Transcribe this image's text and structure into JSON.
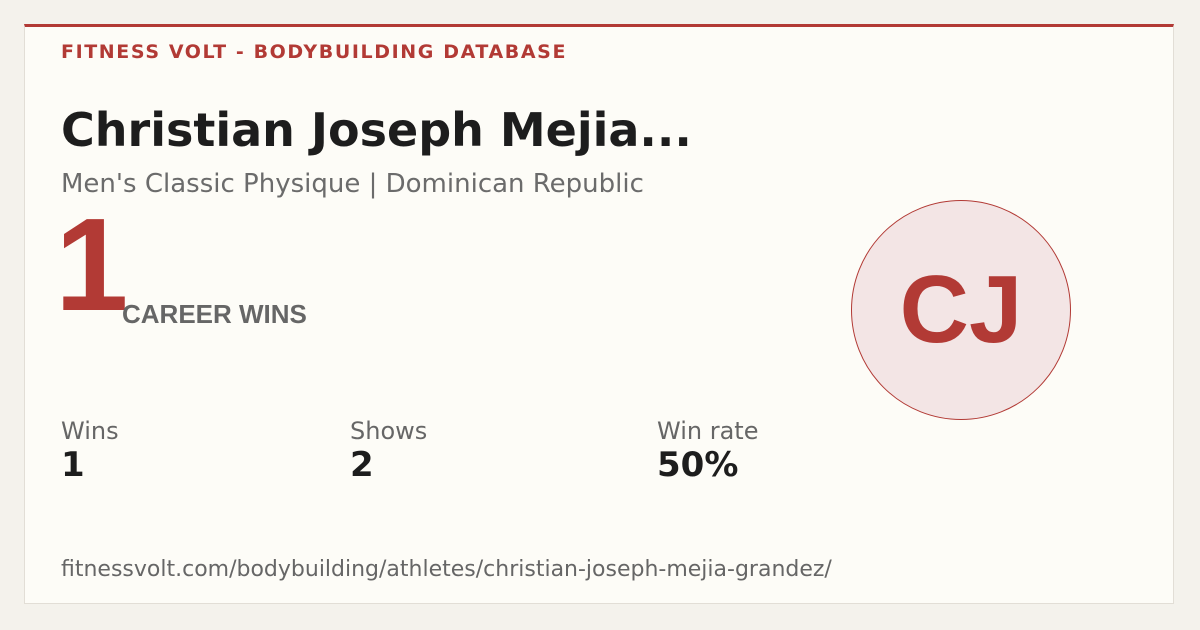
{
  "header": {
    "site": "FITNESS VOLT - BODYBUILDING DATABASE"
  },
  "athlete": {
    "name": "Christian Joseph Mejia...",
    "subtitle": "Men's Classic Physique | Dominican Republic",
    "initials": "CJ"
  },
  "hero": {
    "value": "1",
    "label": "CAREER WINS"
  },
  "stats": [
    {
      "label": "Wins",
      "value": "1"
    },
    {
      "label": "Shows",
      "value": "2"
    },
    {
      "label": "Win rate",
      "value": "50%"
    }
  ],
  "footer": {
    "url": "fitnessvolt.com/bodybuilding/athletes/christian-joseph-mejia-grandez/"
  }
}
